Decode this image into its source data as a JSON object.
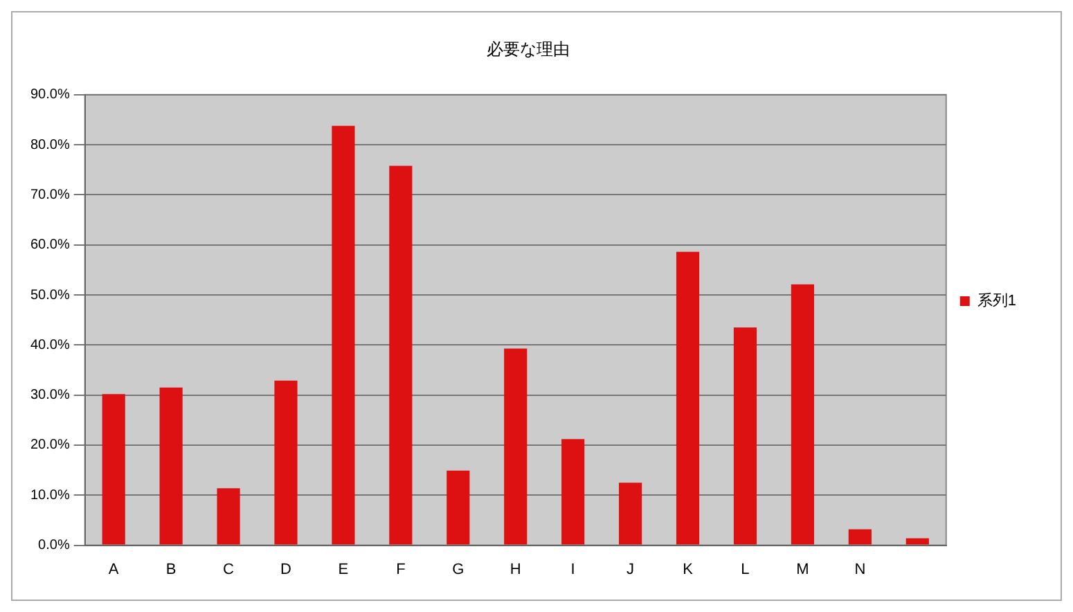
{
  "chart_data": {
    "type": "bar",
    "title": "必要な理由",
    "categories": [
      "A",
      "B",
      "C",
      "D",
      "E",
      "F",
      "G",
      "H",
      "I",
      "J",
      "K",
      "L",
      "M",
      "N",
      null
    ],
    "series": [
      {
        "name": "系列1",
        "color": "#dd1111",
        "values": [
          30.2,
          31.5,
          11.4,
          32.9,
          83.8,
          75.8,
          14.9,
          39.3,
          21.2,
          12.5,
          58.6,
          43.5,
          52.1,
          3.2,
          1.4
        ]
      }
    ],
    "ylim": [
      0,
      90
    ],
    "yticks": [
      {
        "value": 0,
        "label": "0.0%"
      },
      {
        "value": 10,
        "label": "10.0%"
      },
      {
        "value": 20,
        "label": "20.0%"
      },
      {
        "value": 30,
        "label": "30.0%"
      },
      {
        "value": 40,
        "label": "40.0%"
      },
      {
        "value": 50,
        "label": "50.0%"
      },
      {
        "value": 60,
        "label": "60.0%"
      },
      {
        "value": 70,
        "label": "70.0%"
      },
      {
        "value": 80,
        "label": "80.0%"
      },
      {
        "value": 90,
        "label": "90.0%"
      }
    ],
    "grid": "y",
    "legend": "right"
  }
}
